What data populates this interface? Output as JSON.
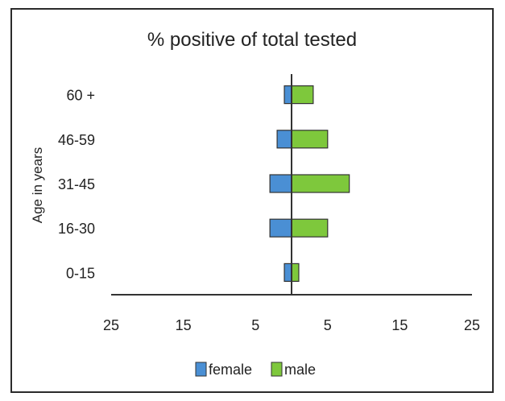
{
  "chart_data": {
    "type": "bar",
    "orientation": "horizontal",
    "layout": "population-pyramid",
    "title": "% positive of total tested",
    "xlabel": "",
    "ylabel": "Age in years",
    "categories": [
      "0-15",
      "16-30",
      "31-45",
      "46-59",
      "60 +"
    ],
    "series": [
      {
        "name": "female",
        "color": "#4a8fd4",
        "values": [
          1,
          3,
          3,
          2,
          1
        ]
      },
      {
        "name": "male",
        "color": "#7ec83c",
        "values": [
          1,
          5,
          8,
          5,
          3
        ]
      }
    ],
    "xlim": [
      -25,
      25
    ],
    "x_ticks": [
      {
        "value": -25,
        "label": "25"
      },
      {
        "value": -15,
        "label": "15"
      },
      {
        "value": -5,
        "label": "5"
      },
      {
        "value": 5,
        "label": "5"
      },
      {
        "value": 15,
        "label": "15"
      },
      {
        "value": 25,
        "label": "25"
      }
    ],
    "grid": false,
    "legend": "bottom"
  }
}
